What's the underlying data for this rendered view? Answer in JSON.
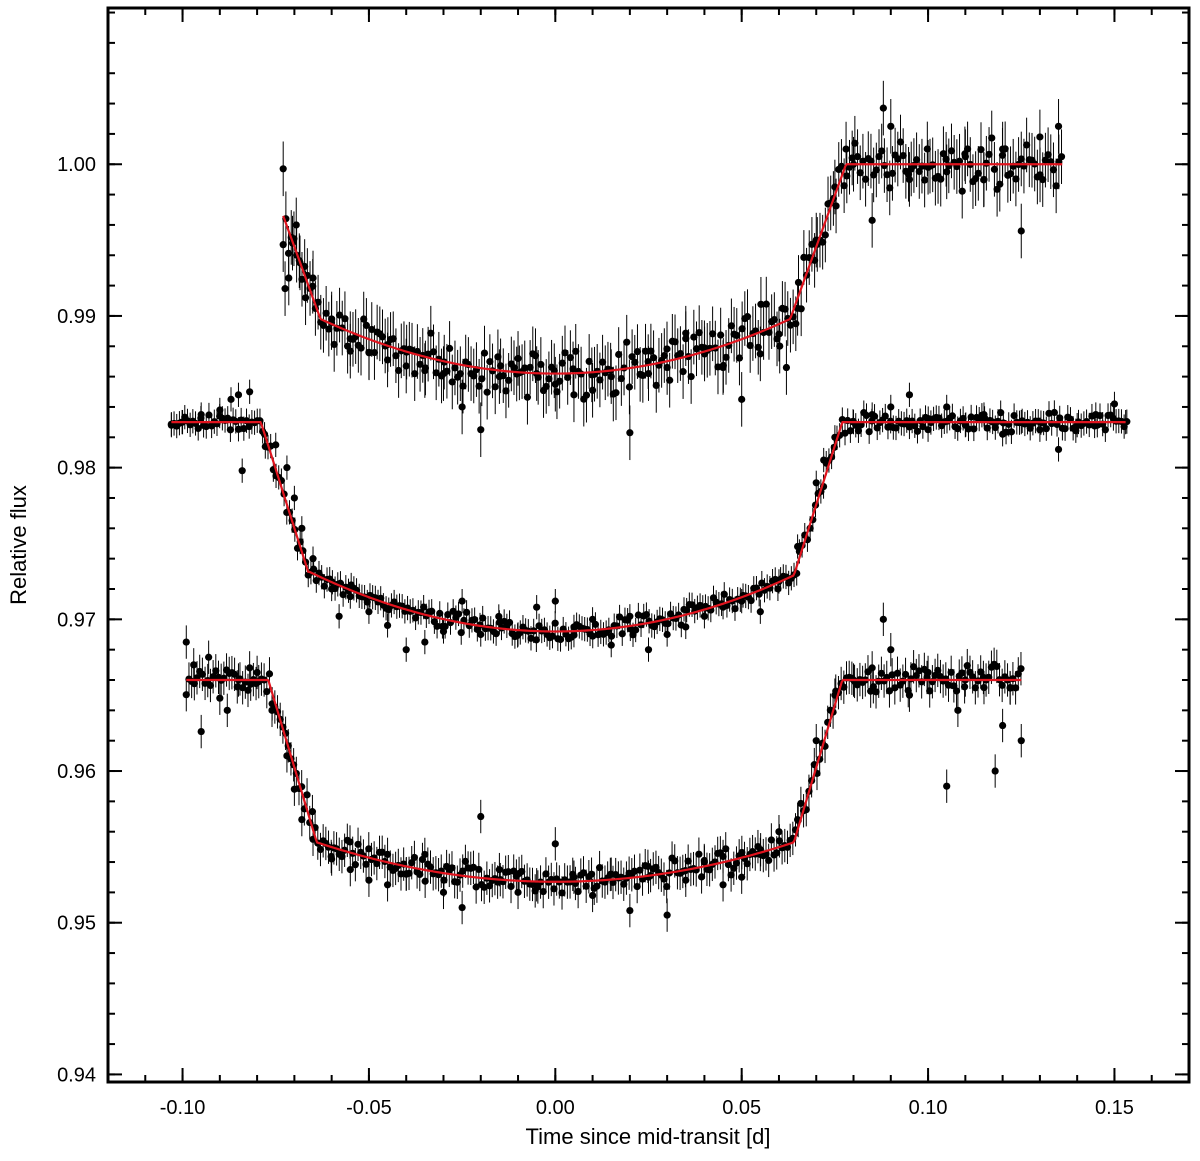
{
  "chart_data": {
    "type": "scatter",
    "title": "",
    "xlabel": "Time since mid-transit [d]",
    "ylabel": "Relative flux",
    "xlim": [
      -0.12,
      0.17
    ],
    "ylim": [
      0.9395,
      1.0103
    ],
    "x_ticks": [
      -0.1,
      -0.05,
      0.0,
      0.05,
      0.1,
      0.15
    ],
    "x_tick_labels": [
      "-0.10",
      "-0.05",
      "0.00",
      "0.05",
      "0.10",
      "0.15"
    ],
    "y_ticks": [
      0.94,
      0.95,
      0.96,
      0.97,
      0.98,
      0.99,
      1.0
    ],
    "y_tick_labels": [
      "0.94",
      "0.95",
      "0.96",
      "0.97",
      "0.98",
      "0.99",
      "1.00"
    ],
    "grid": false,
    "legend": "none",
    "marker_color": "#000000",
    "model_color": "#e0141e",
    "series": [
      {
        "offset": 1.0,
        "x_start": -0.073,
        "x_end": 0.136,
        "t1": -0.078,
        "t2": -0.063,
        "t3": 0.063,
        "t4": 0.078,
        "depth": 0.0138,
        "ingress_level": 0.0102,
        "scatter": 0.0019,
        "error": 0.0018,
        "points": [
          [
            -0.073,
            0.9997
          ],
          [
            -0.0725,
            0.9918
          ],
          [
            -0.0715,
            0.9925
          ],
          [
            -0.0705,
            0.9948
          ],
          [
            -0.0695,
            0.996
          ],
          [
            -0.0685,
            0.9935
          ],
          [
            -0.067,
            0.9912
          ],
          [
            -0.065,
            0.9925
          ],
          [
            -0.06,
            0.9898
          ],
          [
            -0.055,
            0.9885
          ],
          [
            -0.05,
            0.9876
          ],
          [
            -0.045,
            0.9871
          ],
          [
            -0.04,
            0.9867
          ],
          [
            -0.035,
            0.9864
          ],
          [
            -0.03,
            0.9862
          ],
          [
            -0.025,
            0.984
          ],
          [
            -0.02,
            0.9825
          ],
          [
            -0.015,
            0.986
          ],
          [
            -0.01,
            0.9872
          ],
          [
            -0.005,
            0.9862
          ],
          [
            0.0,
            0.9855
          ],
          [
            0.005,
            0.9848
          ],
          [
            0.01,
            0.9851
          ],
          [
            0.015,
            0.986
          ],
          [
            0.02,
            0.9823
          ],
          [
            0.025,
            0.9862
          ],
          [
            0.03,
            0.9866
          ],
          [
            0.035,
            0.9885
          ],
          [
            0.04,
            0.9879
          ],
          [
            0.045,
            0.9866
          ],
          [
            0.05,
            0.9845
          ],
          [
            0.055,
            0.9875
          ],
          [
            0.06,
            0.9888
          ],
          [
            0.062,
            0.9866
          ],
          [
            0.065,
            0.9905
          ],
          [
            0.07,
            0.995
          ],
          [
            0.075,
            0.9985
          ],
          [
            0.078,
            1.001
          ],
          [
            0.08,
            1.0
          ],
          [
            0.085,
            0.9963
          ],
          [
            0.088,
            1.0037
          ],
          [
            0.09,
            1.0025
          ],
          [
            0.095,
            0.999
          ],
          [
            0.1,
            0.9998
          ],
          [
            0.105,
            0.9995
          ],
          [
            0.11,
            1.0005
          ],
          [
            0.115,
            0.999
          ],
          [
            0.12,
            1.001
          ],
          [
            0.125,
            0.9956
          ],
          [
            0.13,
            1.0018
          ],
          [
            0.135,
            1.0025
          ]
        ]
      },
      {
        "offset": 0.983,
        "x_start": -0.103,
        "x_end": 0.153,
        "t1": -0.079,
        "t2": -0.066,
        "t3": 0.064,
        "t4": 0.077,
        "depth": 0.0138,
        "ingress_level": 0.0101,
        "scatter": 0.0008,
        "error": 0.0008,
        "points": [
          [
            -0.103,
            0.9828
          ],
          [
            -0.1,
            0.983
          ],
          [
            -0.095,
            0.9835
          ],
          [
            -0.09,
            0.9838
          ],
          [
            -0.087,
            0.9845
          ],
          [
            -0.085,
            0.9848
          ],
          [
            -0.082,
            0.985
          ],
          [
            -0.084,
            0.9798
          ],
          [
            -0.078,
            0.9822
          ],
          [
            -0.075,
            0.9815
          ],
          [
            -0.072,
            0.98
          ],
          [
            -0.07,
            0.978
          ],
          [
            -0.068,
            0.976
          ],
          [
            -0.065,
            0.974
          ],
          [
            -0.06,
            0.972
          ],
          [
            -0.058,
            0.9702
          ],
          [
            -0.055,
            0.9715
          ],
          [
            -0.05,
            0.9705
          ],
          [
            -0.045,
            0.9696
          ],
          [
            -0.04,
            0.968
          ],
          [
            -0.035,
            0.9685
          ],
          [
            -0.03,
            0.9692
          ],
          [
            -0.025,
            0.9712
          ],
          [
            -0.02,
            0.969
          ],
          [
            -0.015,
            0.9698
          ],
          [
            -0.01,
            0.969
          ],
          [
            -0.005,
            0.9708
          ],
          [
            0.0,
            0.9712
          ],
          [
            0.005,
            0.9695
          ],
          [
            0.01,
            0.97
          ],
          [
            0.015,
            0.9683
          ],
          [
            0.02,
            0.9702
          ],
          [
            0.025,
            0.968
          ],
          [
            0.03,
            0.969
          ],
          [
            0.035,
            0.9695
          ],
          [
            0.04,
            0.9702
          ],
          [
            0.045,
            0.9708
          ],
          [
            0.05,
            0.9712
          ],
          [
            0.055,
            0.9705
          ],
          [
            0.06,
            0.9725
          ],
          [
            0.065,
            0.9748
          ],
          [
            0.07,
            0.979
          ],
          [
            0.072,
            0.9805
          ],
          [
            0.075,
            0.982
          ],
          [
            0.08,
            0.983
          ],
          [
            0.085,
            0.9835
          ],
          [
            0.09,
            0.984
          ],
          [
            0.095,
            0.9848
          ],
          [
            0.1,
            0.9825
          ],
          [
            0.105,
            0.984
          ],
          [
            0.11,
            0.9828
          ],
          [
            0.115,
            0.9835
          ],
          [
            0.12,
            0.9822
          ],
          [
            0.125,
            0.983
          ],
          [
            0.13,
            0.9825
          ],
          [
            0.135,
            0.9812
          ],
          [
            0.14,
            0.9828
          ],
          [
            0.145,
            0.9835
          ],
          [
            0.15,
            0.9842
          ],
          [
            0.153,
            0.983
          ]
        ]
      },
      {
        "offset": 0.966,
        "x_start": -0.099,
        "x_end": 0.125,
        "t1": -0.077,
        "t2": -0.064,
        "t3": 0.064,
        "t4": 0.077,
        "depth": 0.0133,
        "ingress_level": 0.0107,
        "scatter": 0.0011,
        "error": 0.0011,
        "points": [
          [
            -0.099,
            0.9685
          ],
          [
            -0.097,
            0.967
          ],
          [
            -0.095,
            0.9626
          ],
          [
            -0.093,
            0.9675
          ],
          [
            -0.09,
            0.9648
          ],
          [
            -0.088,
            0.964
          ],
          [
            -0.085,
            0.966
          ],
          [
            -0.082,
            0.9668
          ],
          [
            -0.08,
            0.9665
          ],
          [
            -0.076,
            0.964
          ],
          [
            -0.072,
            0.961
          ],
          [
            -0.07,
            0.9588
          ],
          [
            -0.068,
            0.9568
          ],
          [
            -0.065,
            0.9555
          ],
          [
            -0.06,
            0.9542
          ],
          [
            -0.055,
            0.9535
          ],
          [
            -0.05,
            0.9528
          ],
          [
            -0.045,
            0.9525
          ],
          [
            -0.04,
            0.9532
          ],
          [
            -0.035,
            0.9545
          ],
          [
            -0.03,
            0.952
          ],
          [
            -0.025,
            0.951
          ],
          [
            -0.02,
            0.957
          ],
          [
            -0.015,
            0.9535
          ],
          [
            -0.01,
            0.952
          ],
          [
            -0.005,
            0.9525
          ],
          [
            0.0,
            0.9552
          ],
          [
            0.005,
            0.953
          ],
          [
            0.01,
            0.9518
          ],
          [
            0.015,
            0.9532
          ],
          [
            0.02,
            0.9508
          ],
          [
            0.025,
            0.953
          ],
          [
            0.03,
            0.9505
          ],
          [
            0.035,
            0.9528
          ],
          [
            0.04,
            0.954
          ],
          [
            0.045,
            0.9525
          ],
          [
            0.05,
            0.953
          ],
          [
            0.055,
            0.9545
          ],
          [
            0.06,
            0.956
          ],
          [
            0.065,
            0.9568
          ],
          [
            0.07,
            0.962
          ],
          [
            0.075,
            0.965
          ],
          [
            0.08,
            0.966
          ],
          [
            0.085,
            0.9668
          ],
          [
            0.088,
            0.97
          ],
          [
            0.09,
            0.968
          ],
          [
            0.095,
            0.965
          ],
          [
            0.1,
            0.9665
          ],
          [
            0.105,
            0.959
          ],
          [
            0.108,
            0.964
          ],
          [
            0.11,
            0.966
          ],
          [
            0.115,
            0.9655
          ],
          [
            0.118,
            0.96
          ],
          [
            0.12,
            0.963
          ],
          [
            0.122,
            0.9655
          ],
          [
            0.125,
            0.962
          ]
        ]
      }
    ]
  }
}
